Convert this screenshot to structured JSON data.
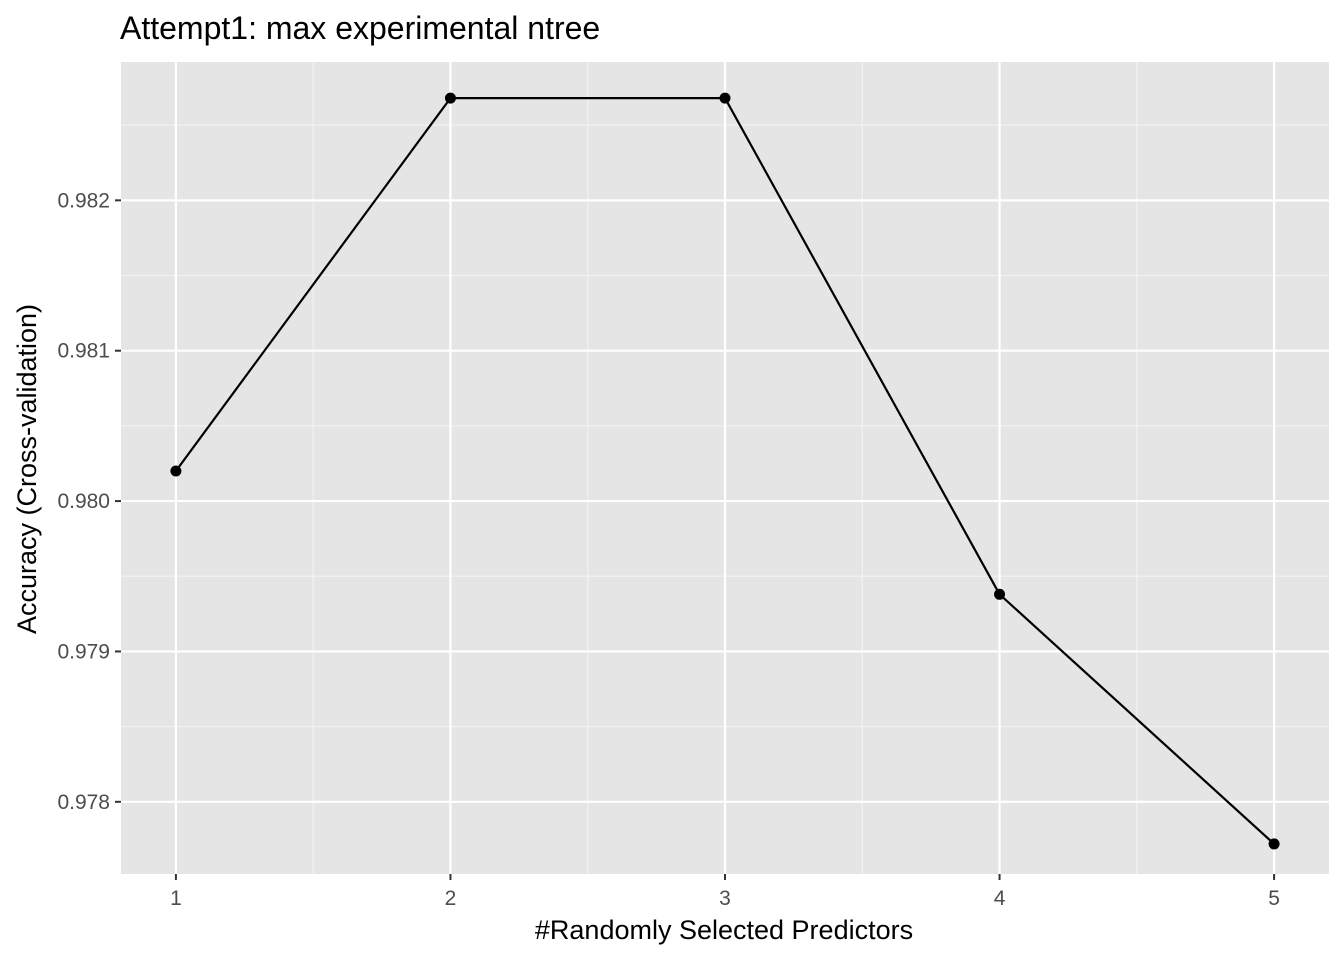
{
  "chart_data": {
    "type": "line",
    "title": "Attempt1: max experimental ntree",
    "xlabel": "#Randomly Selected Predictors",
    "ylabel": "Accuracy (Cross-validation)",
    "x": [
      1,
      2,
      3,
      4,
      5
    ],
    "y": [
      0.9802,
      0.98268,
      0.98268,
      0.97938,
      0.97772
    ],
    "xlim": [
      0.8,
      5.2
    ],
    "ylim": [
      0.97752,
      0.98292
    ],
    "x_ticks": [
      1,
      2,
      3,
      4,
      5
    ],
    "x_tick_labels": [
      "1",
      "2",
      "3",
      "4",
      "5"
    ],
    "y_ticks": [
      0.978,
      0.979,
      0.98,
      0.981,
      0.982
    ],
    "y_tick_labels": [
      "0.978",
      "0.979",
      "0.980",
      "0.981",
      "0.982"
    ],
    "grid": true,
    "legend": "none",
    "colors": {
      "panel_background": "#e5e5e5",
      "grid_major": "#ffffff",
      "grid_minor": "#f2f2f2",
      "line": "#000000",
      "points": "#000000",
      "tick_text": "#4d4d4d",
      "tick_marks": "#333333"
    }
  }
}
